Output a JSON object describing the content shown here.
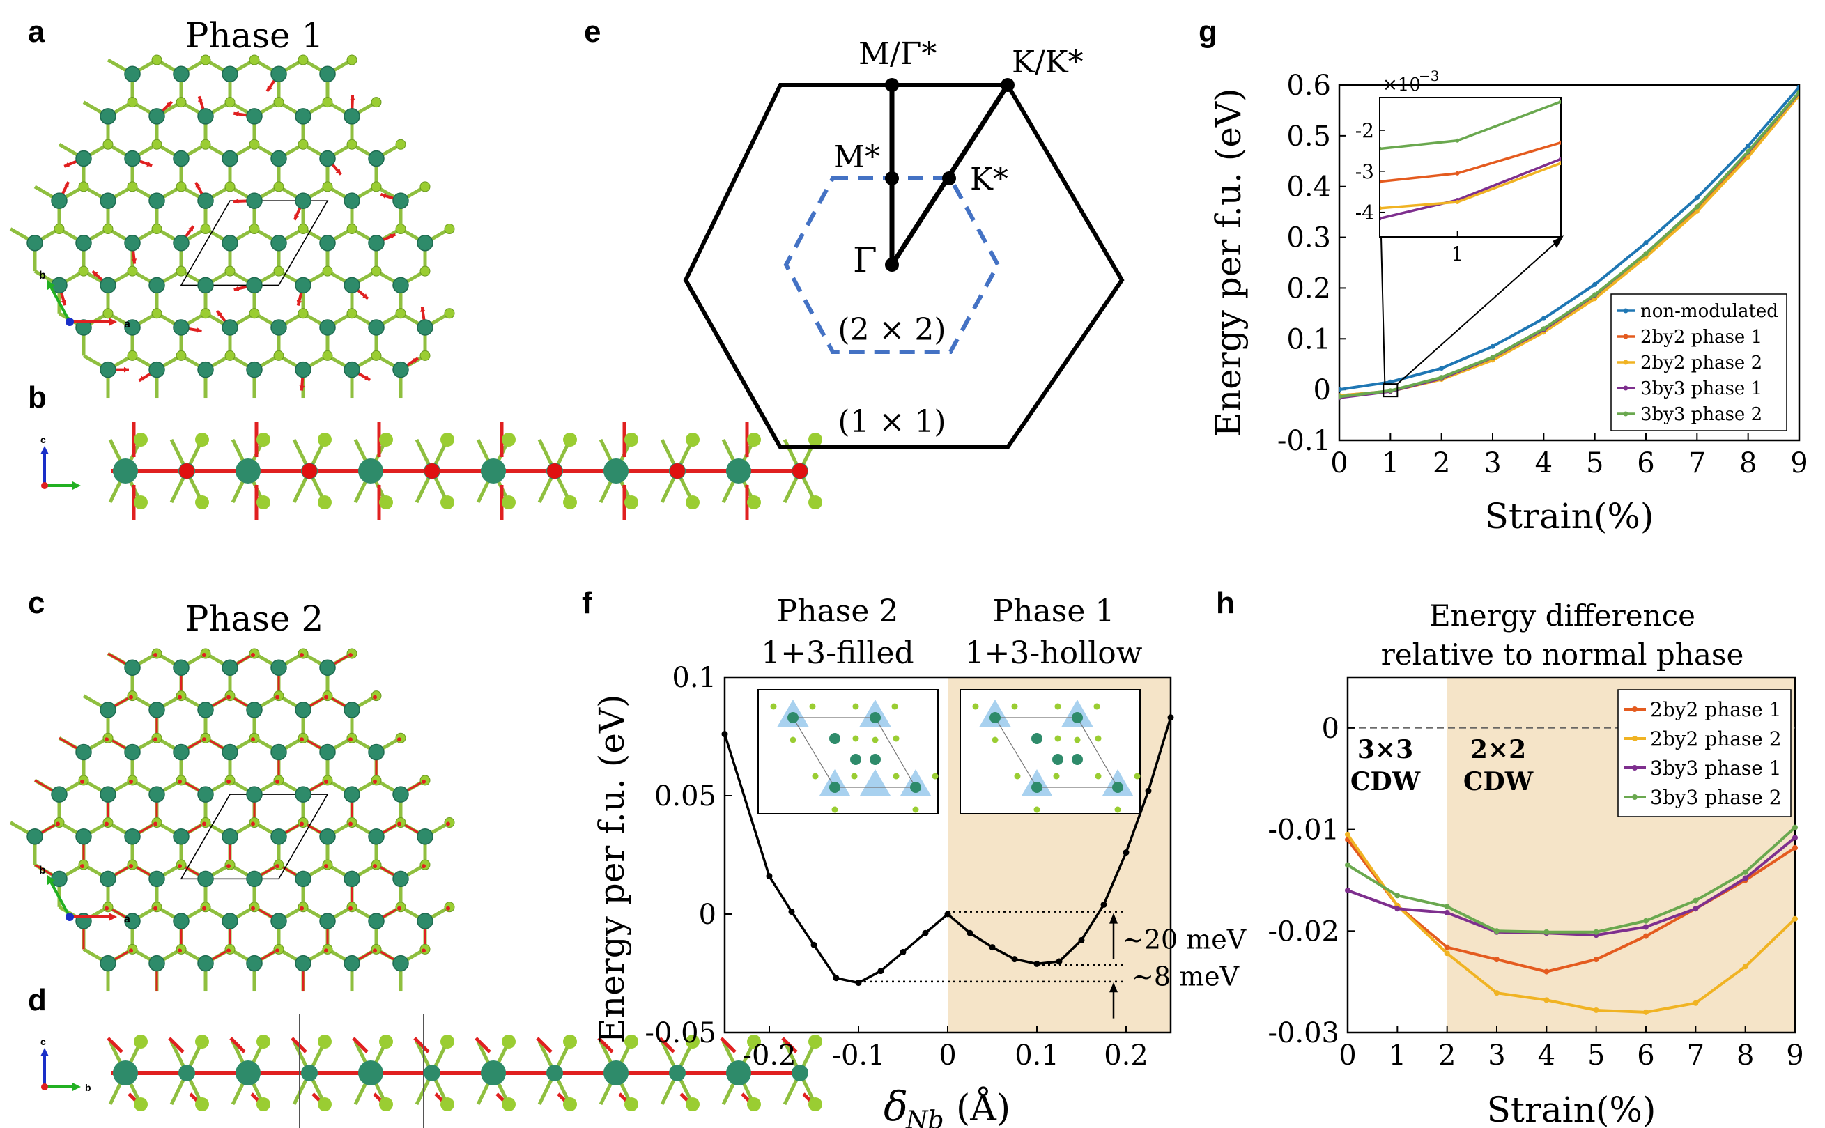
{
  "panel_letters": {
    "a": "a",
    "b": "b",
    "c": "c",
    "d": "d",
    "e": "e",
    "f": "f",
    "g": "g",
    "h": "h"
  },
  "structure": {
    "phase1_title": "Phase 1",
    "phase2_title": "Phase 2",
    "axis_a": "a",
    "axis_b": "b",
    "axis_c": "c",
    "colors": {
      "nb": "#2e8b6a",
      "se": "#9acd32",
      "arrow": "#e02020",
      "cell": "#000000"
    }
  },
  "bz": {
    "labels": {
      "m_gamma": "M/Γ*",
      "k_kstar": "K/K*",
      "m_star": "M*",
      "k_star": "K*",
      "gamma": "Γ",
      "small": "(2 × 2)",
      "large": "(1 × 1)"
    },
    "colors": {
      "outer": "#000000",
      "inner": "#4472c4"
    }
  },
  "chart_data": [
    {
      "id": "g",
      "type": "line",
      "title": "",
      "xlabel": "Strain(%)",
      "ylabel": "Energy per f.u. (eV)",
      "xlim": [
        0,
        9
      ],
      "ylim": [
        -0.1,
        0.6
      ],
      "xticks": [
        "0",
        "1",
        "2",
        "3",
        "4",
        "5",
        "6",
        "7",
        "8",
        "9"
      ],
      "yticks": [
        "-0.1",
        "0",
        "0.1",
        "0.2",
        "0.3",
        "0.4",
        "0.5",
        "0.6"
      ],
      "x": [
        0,
        1,
        2,
        3,
        4,
        5,
        6,
        7,
        8,
        9
      ],
      "series": [
        {
          "name": "non-modulated",
          "color": "#1f77b4",
          "values": [
            0,
            0.015,
            0.042,
            0.085,
            0.14,
            0.207,
            0.289,
            0.378,
            0.48,
            0.596
          ]
        },
        {
          "name": "2by2 phase 1",
          "color": "#e45b1f",
          "values": [
            -0.012,
            -0.003,
            0.021,
            0.062,
            0.117,
            0.184,
            0.265,
            0.358,
            0.465,
            0.584
          ]
        },
        {
          "name": "2by2 phase 2",
          "color": "#f0b323",
          "values": [
            -0.012,
            -0.0035,
            0.02,
            0.058,
            0.113,
            0.179,
            0.261,
            0.351,
            0.458,
            0.58
          ]
        },
        {
          "name": "3by3 phase 1",
          "color": "#7e2f8e",
          "values": [
            -0.016,
            -0.0036,
            0.022,
            0.063,
            0.118,
            0.186,
            0.268,
            0.36,
            0.468,
            0.585
          ]
        },
        {
          "name": "3by3 phase 2",
          "color": "#6aa84f",
          "values": [
            -0.014,
            -0.0022,
            0.024,
            0.064,
            0.12,
            0.187,
            0.268,
            0.36,
            0.469,
            0.586
          ]
        }
      ],
      "inset": {
        "multiplier": "×10",
        "exponent": "−3",
        "yticks": [
          "-2",
          "-3",
          "-4"
        ],
        "xtick": "1",
        "xlim": [
          0.7,
          1.4
        ],
        "ylim": [
          -4.6,
          -1.2
        ],
        "x": [
          0.7,
          1,
          1.4
        ],
        "series": [
          {
            "name": "3by3 phase 2",
            "color": "#6aa84f",
            "values": [
              -2.45,
              -2.25,
              -1.3
            ]
          },
          {
            "name": "2by2 phase 1",
            "color": "#e45b1f",
            "values": [
              -3.25,
              -3.05,
              -2.3
            ]
          },
          {
            "name": "3by3 phase 1",
            "color": "#7e2f8e",
            "values": [
              -4.15,
              -3.7,
              -2.7
            ]
          },
          {
            "name": "2by2 phase 2",
            "color": "#f0b323",
            "values": [
              -3.9,
              -3.75,
              -2.8
            ]
          }
        ]
      }
    },
    {
      "id": "f",
      "type": "line",
      "title_left": [
        "Phase 2",
        "1+3-filled"
      ],
      "title_right": [
        "Phase 1",
        "1+3-hollow"
      ],
      "xlabel": "δ",
      "xlabel_sub": "Nb",
      "xlabel_unit": "(Å)",
      "ylabel": "Energy per f.u. (eV)",
      "xlim": [
        -0.25,
        0.25
      ],
      "ylim": [
        -0.05,
        0.1
      ],
      "xticks": [
        "-0.2",
        "-0.1",
        "0",
        "0.1",
        "0.2"
      ],
      "yticks": [
        "-0.05",
        "0",
        "0.05",
        "0.1"
      ],
      "x": [
        -0.25,
        -0.2,
        -0.175,
        -0.15,
        -0.125,
        -0.1,
        -0.075,
        -0.05,
        -0.025,
        0,
        0.025,
        0.05,
        0.075,
        0.1,
        0.125,
        0.15,
        0.175,
        0.2,
        0.225,
        0.25
      ],
      "values": [
        0.076,
        0.016,
        0.001,
        -0.013,
        -0.027,
        -0.029,
        -0.024,
        -0.016,
        -0.008,
        0,
        -0.008,
        -0.014,
        -0.019,
        -0.021,
        -0.02,
        -0.011,
        0.004,
        0.026,
        0.052,
        0.083
      ],
      "shade_from": 0,
      "annotations": [
        "~20 meV",
        "~8 meV"
      ],
      "color": "#000000",
      "shade_color": "#f5e4c8"
    },
    {
      "id": "h",
      "type": "line",
      "title": [
        "Energy difference",
        "relative to normal phase"
      ],
      "xlabel": "Strain(%)",
      "xlim": [
        0,
        9
      ],
      "ylim": [
        -0.03,
        0.005
      ],
      "xticks": [
        "0",
        "1",
        "2",
        "3",
        "4",
        "5",
        "6",
        "7",
        "8",
        "9"
      ],
      "yticks": [
        "0",
        "-0.01",
        "-0.02",
        "-0.03"
      ],
      "x": [
        0,
        1,
        2,
        3,
        4,
        5,
        6,
        7,
        8,
        9
      ],
      "shade_from": 2,
      "region_labels": [
        [
          "3×3",
          "CDW"
        ],
        [
          "2×2",
          "CDW"
        ]
      ],
      "series": [
        {
          "name": "2by2 phase 1",
          "color": "#e45b1f",
          "values": [
            -0.011,
            -0.0175,
            -0.0216,
            -0.0228,
            -0.024,
            -0.0228,
            -0.0205,
            -0.0178,
            -0.015,
            -0.0118
          ]
        },
        {
          "name": "2by2 phase 2",
          "color": "#f0b323",
          "values": [
            -0.0105,
            -0.0175,
            -0.0222,
            -0.0261,
            -0.0268,
            -0.0278,
            -0.028,
            -0.0271,
            -0.0235,
            -0.0188
          ]
        },
        {
          "name": "3by3 phase 1",
          "color": "#7e2f8e",
          "values": [
            -0.016,
            -0.0178,
            -0.0182,
            -0.0201,
            -0.0202,
            -0.0204,
            -0.0196,
            -0.0178,
            -0.0148,
            -0.0108
          ]
        },
        {
          "name": "3by3 phase 2",
          "color": "#6aa84f",
          "values": [
            -0.0135,
            -0.0165,
            -0.0176,
            -0.02,
            -0.0201,
            -0.0201,
            -0.019,
            -0.017,
            -0.0142,
            -0.0098
          ]
        }
      ]
    }
  ]
}
